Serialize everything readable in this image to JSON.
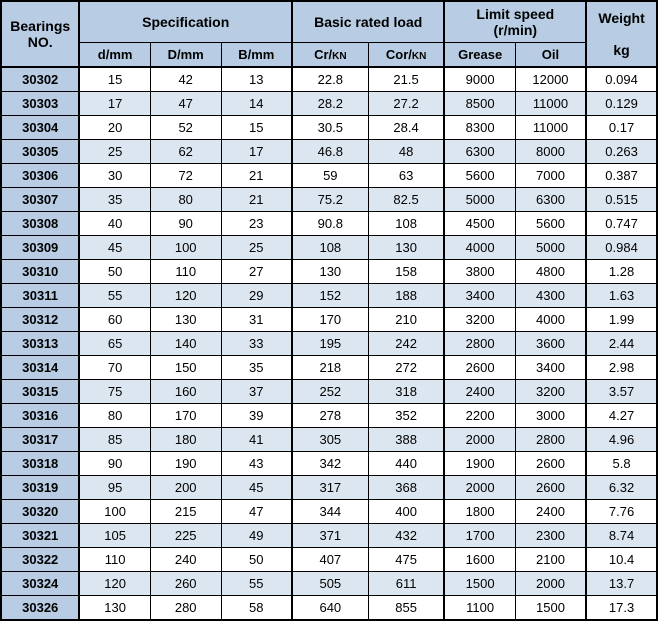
{
  "colors": {
    "header_blue": "#b8cce4",
    "row_blue": "#dce6f1",
    "row_white": "#ffffff",
    "border": "#000000"
  },
  "headers": {
    "bearings_no": "Bearings NO.",
    "specification": "Specification",
    "basic_rated_load": "Basic rated load",
    "limit_speed_line1": "Limit speed",
    "limit_speed_line2": "(r/min)",
    "weight": "Weight",
    "d_mm": "d/mm",
    "D_mm": "D/mm",
    "B_mm": "B/mm",
    "cr_kn": "Cr/",
    "cr_kn_unit": "KN",
    "cor_kn": "Cor/",
    "cor_kn_unit": "KN",
    "grease": "Grease",
    "oil": "Oil",
    "kg": "kg"
  },
  "rows": [
    {
      "bn": "30302",
      "d": "15",
      "D": "42",
      "B": "13",
      "cr": "22.8",
      "cor": "21.5",
      "g": "9000",
      "o": "12000",
      "w": "0.094"
    },
    {
      "bn": "30303",
      "d": "17",
      "D": "47",
      "B": "14",
      "cr": "28.2",
      "cor": "27.2",
      "g": "8500",
      "o": "11000",
      "w": "0.129"
    },
    {
      "bn": "30304",
      "d": "20",
      "D": "52",
      "B": "15",
      "cr": "30.5",
      "cor": "28.4",
      "g": "8300",
      "o": "11000",
      "w": "0.17"
    },
    {
      "bn": "30305",
      "d": "25",
      "D": "62",
      "B": "17",
      "cr": "46.8",
      "cor": "48",
      "g": "6300",
      "o": "8000",
      "w": "0.263"
    },
    {
      "bn": "30306",
      "d": "30",
      "D": "72",
      "B": "21",
      "cr": "59",
      "cor": "63",
      "g": "5600",
      "o": "7000",
      "w": "0.387"
    },
    {
      "bn": "30307",
      "d": "35",
      "D": "80",
      "B": "21",
      "cr": "75.2",
      "cor": "82.5",
      "g": "5000",
      "o": "6300",
      "w": "0.515"
    },
    {
      "bn": "30308",
      "d": "40",
      "D": "90",
      "B": "23",
      "cr": "90.8",
      "cor": "108",
      "g": "4500",
      "o": "5600",
      "w": "0.747"
    },
    {
      "bn": "30309",
      "d": "45",
      "D": "100",
      "B": "25",
      "cr": "108",
      "cor": "130",
      "g": "4000",
      "o": "5000",
      "w": "0.984"
    },
    {
      "bn": "30310",
      "d": "50",
      "D": "110",
      "B": "27",
      "cr": "130",
      "cor": "158",
      "g": "3800",
      "o": "4800",
      "w": "1.28"
    },
    {
      "bn": "30311",
      "d": "55",
      "D": "120",
      "B": "29",
      "cr": "152",
      "cor": "188",
      "g": "3400",
      "o": "4300",
      "w": "1.63"
    },
    {
      "bn": "30312",
      "d": "60",
      "D": "130",
      "B": "31",
      "cr": "170",
      "cor": "210",
      "g": "3200",
      "o": "4000",
      "w": "1.99"
    },
    {
      "bn": "30313",
      "d": "65",
      "D": "140",
      "B": "33",
      "cr": "195",
      "cor": "242",
      "g": "2800",
      "o": "3600",
      "w": "2.44"
    },
    {
      "bn": "30314",
      "d": "70",
      "D": "150",
      "B": "35",
      "cr": "218",
      "cor": "272",
      "g": "2600",
      "o": "3400",
      "w": "2.98"
    },
    {
      "bn": "30315",
      "d": "75",
      "D": "160",
      "B": "37",
      "cr": "252",
      "cor": "318",
      "g": "2400",
      "o": "3200",
      "w": "3.57"
    },
    {
      "bn": "30316",
      "d": "80",
      "D": "170",
      "B": "39",
      "cr": "278",
      "cor": "352",
      "g": "2200",
      "o": "3000",
      "w": "4.27"
    },
    {
      "bn": "30317",
      "d": "85",
      "D": "180",
      "B": "41",
      "cr": "305",
      "cor": "388",
      "g": "2000",
      "o": "2800",
      "w": "4.96"
    },
    {
      "bn": "30318",
      "d": "90",
      "D": "190",
      "B": "43",
      "cr": "342",
      "cor": "440",
      "g": "1900",
      "o": "2600",
      "w": "5.8"
    },
    {
      "bn": "30319",
      "d": "95",
      "D": "200",
      "B": "45",
      "cr": "317",
      "cor": "368",
      "g": "2000",
      "o": "2600",
      "w": "6.32"
    },
    {
      "bn": "30320",
      "d": "100",
      "D": "215",
      "B": "47",
      "cr": "344",
      "cor": "400",
      "g": "1800",
      "o": "2400",
      "w": "7.76"
    },
    {
      "bn": "30321",
      "d": "105",
      "D": "225",
      "B": "49",
      "cr": "371",
      "cor": "432",
      "g": "1700",
      "o": "2300",
      "w": "8.74"
    },
    {
      "bn": "30322",
      "d": "110",
      "D": "240",
      "B": "50",
      "cr": "407",
      "cor": "475",
      "g": "1600",
      "o": "2100",
      "w": "10.4"
    },
    {
      "bn": "30324",
      "d": "120",
      "D": "260",
      "B": "55",
      "cr": "505",
      "cor": "611",
      "g": "1500",
      "o": "2000",
      "w": "13.7"
    },
    {
      "bn": "30326",
      "d": "130",
      "D": "280",
      "B": "58",
      "cr": "640",
      "cor": "855",
      "g": "1100",
      "o": "1500",
      "w": "17.3"
    }
  ]
}
